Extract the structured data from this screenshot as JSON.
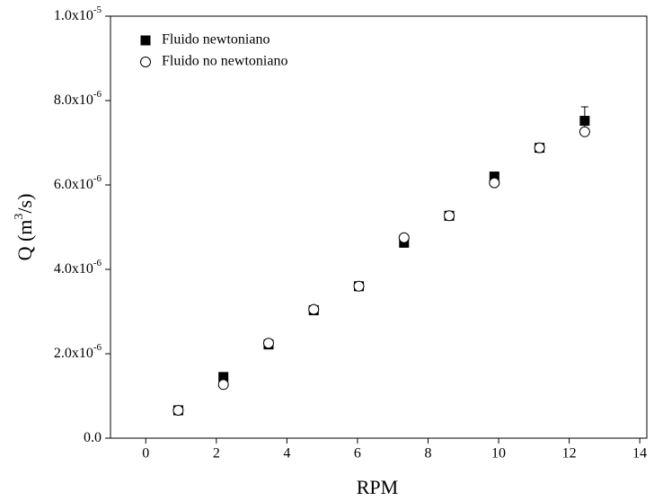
{
  "chart_data": {
    "type": "scatter",
    "xlabel": "RPM",
    "ylabel_parts": [
      "Q (m",
      "3",
      "/s)"
    ],
    "xlim": [
      -1,
      14.2
    ],
    "ylim": [
      0,
      1e-05
    ],
    "xticks": [
      0,
      2,
      4,
      6,
      8,
      10,
      12,
      14
    ],
    "yticks": [
      {
        "value": 0,
        "label": "0.0"
      },
      {
        "value": 2e-06,
        "label": "2.0x10",
        "sup": "-6"
      },
      {
        "value": 4e-06,
        "label": "4.0x10",
        "sup": "-6"
      },
      {
        "value": 6e-06,
        "label": "6.0x10",
        "sup": "-6"
      },
      {
        "value": 8e-06,
        "label": "8.0x10",
        "sup": "-6"
      },
      {
        "value": 1e-05,
        "label": "1.0x10",
        "sup": "-5"
      }
    ],
    "legend": "top-left",
    "series": [
      {
        "name": "Fluido newtoniano",
        "color": "#000000",
        "marker": "square",
        "x": [
          0.92,
          2.2,
          3.48,
          4.76,
          6.04,
          7.32,
          8.6,
          9.88,
          11.16,
          12.44
        ],
        "values": [
          6.6e-07,
          1.45e-06,
          2.22e-06,
          3.03e-06,
          3.6e-06,
          4.63e-06,
          5.27e-06,
          6.2e-06,
          6.88e-06,
          7.52e-06
        ],
        "errors": [
          3e-08,
          5e-08,
          1e-07,
          5e-08,
          5e-08,
          5e-08,
          1e-07,
          8e-08,
          1e-07,
          3.3e-07
        ]
      },
      {
        "name": "Fluido no newtoniano",
        "color": "#000000",
        "marker": "circle",
        "x": [
          0.92,
          2.2,
          3.48,
          4.76,
          6.04,
          7.32,
          8.6,
          9.88,
          11.16,
          12.44
        ],
        "values": [
          6.6e-07,
          1.27e-06,
          2.25e-06,
          3.05e-06,
          3.6e-06,
          4.75e-06,
          5.27e-06,
          6.05e-06,
          6.88e-06,
          7.26e-06
        ]
      }
    ]
  }
}
